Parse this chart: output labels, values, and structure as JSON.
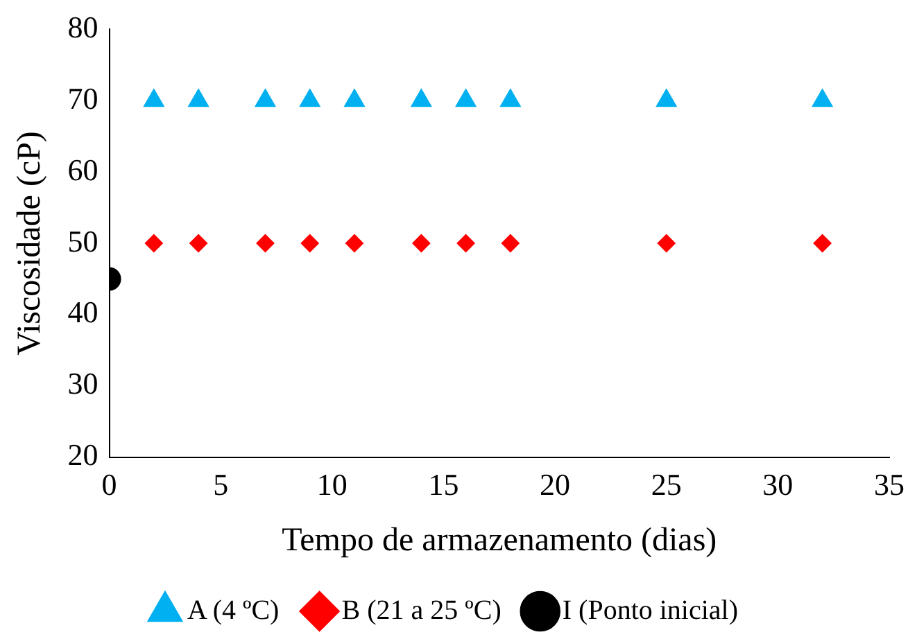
{
  "chart_data": {
    "type": "scatter",
    "xlabel": "Tempo de armazenamento (dias)",
    "ylabel": "Viscosidade (cP)",
    "xlim": [
      0,
      35
    ],
    "xticks": [
      0,
      5,
      10,
      15,
      20,
      25,
      30,
      35
    ],
    "ylim": [
      20,
      80
    ],
    "yticks": [
      20,
      30,
      40,
      50,
      60,
      70,
      80
    ],
    "grid": false,
    "legend": "bottom",
    "series": [
      {
        "name": "A (4 ºC)",
        "color": "#00b0f0",
        "marker": "triangle",
        "x": [
          2,
          4,
          7,
          9,
          11,
          14,
          16,
          18,
          25,
          32
        ],
        "values": [
          70,
          70,
          70,
          70,
          70,
          70,
          70,
          70,
          70,
          70
        ]
      },
      {
        "name": "B (21 a 25 ºC)",
        "color": "#ff0000",
        "marker": "diamond",
        "x": [
          2,
          4,
          7,
          9,
          11,
          14,
          16,
          18,
          25,
          32
        ],
        "values": [
          50,
          50,
          50,
          50,
          50,
          50,
          50,
          50,
          50,
          50
        ]
      },
      {
        "name": "I (Ponto inicial)",
        "color": "#000000",
        "marker": "circle",
        "x": [
          0
        ],
        "values": [
          45
        ]
      }
    ]
  }
}
